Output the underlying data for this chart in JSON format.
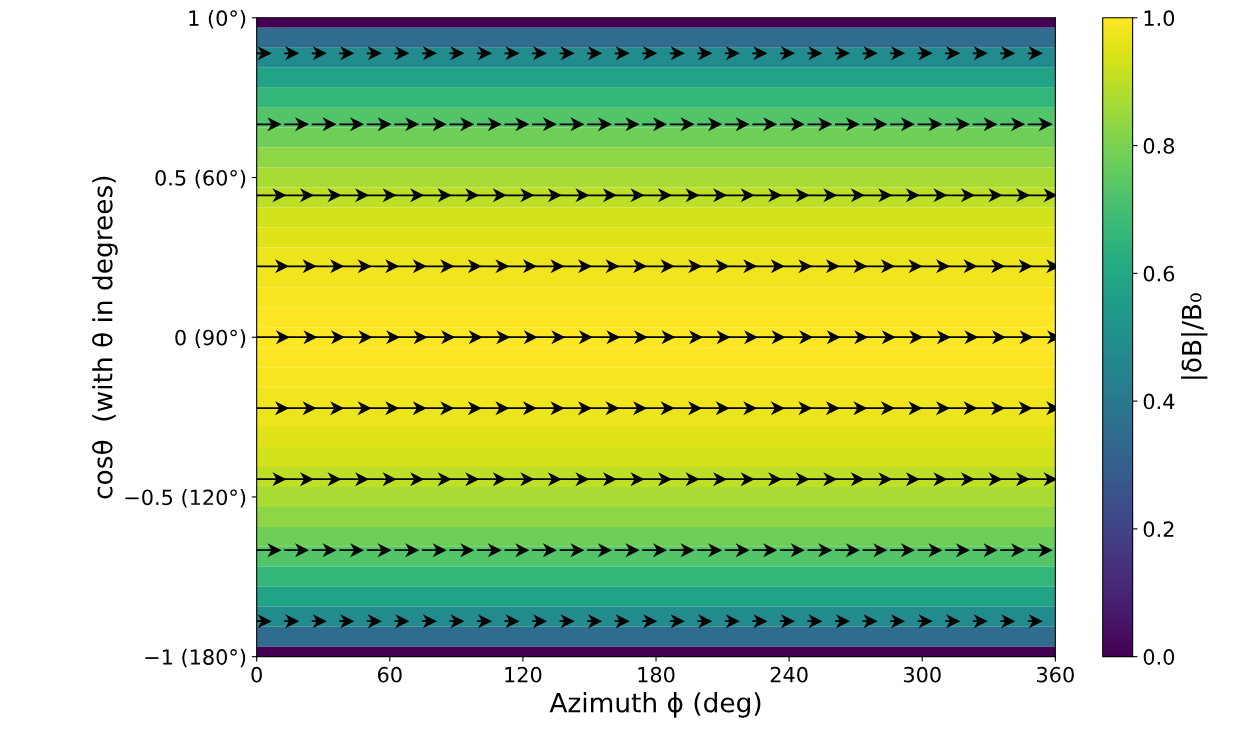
{
  "chart_data": {
    "type": "heatmap",
    "xlabel": "Azimuth ϕ (deg)",
    "ylabel": "cosθ  (with θ in degrees)",
    "clabel": "|δB|/B₀",
    "y_categories": [
      "1 (0°)",
      null,
      null,
      null,
      null,
      null,
      null,
      null,
      "0.5 (60°)",
      null,
      null,
      null,
      null,
      null,
      null,
      null,
      "0 (90°)",
      null,
      null,
      null,
      null,
      null,
      null,
      null,
      "−0.5 (120°)",
      null,
      null,
      null,
      null,
      null,
      null,
      null,
      "−1 (180°)"
    ],
    "cells": [
      [
        0.0
      ],
      [
        0.35
      ],
      [
        0.48
      ],
      [
        0.58
      ],
      [
        0.66
      ],
      [
        0.73
      ],
      [
        0.78
      ],
      [
        0.83
      ],
      [
        0.87
      ],
      [
        0.9
      ],
      [
        0.93
      ],
      [
        0.95
      ],
      [
        0.97
      ],
      [
        0.98
      ],
      [
        0.99
      ],
      [
        1.0
      ],
      [
        1.0
      ],
      [
        1.0
      ],
      [
        0.99
      ],
      [
        0.98
      ],
      [
        0.97
      ],
      [
        0.95
      ],
      [
        0.93
      ],
      [
        0.9
      ],
      [
        0.87
      ],
      [
        0.83
      ],
      [
        0.78
      ],
      [
        0.73
      ],
      [
        0.66
      ],
      [
        0.58
      ],
      [
        0.48
      ],
      [
        0.35
      ],
      [
        0.0
      ]
    ],
    "xlim": [
      0,
      360
    ],
    "xticks": [
      0,
      60,
      120,
      180,
      240,
      300,
      360
    ],
    "clim": [
      0,
      1
    ],
    "cticks": [
      {
        "value": 0,
        "label": "0.0"
      },
      {
        "value": 0.2,
        "label": "0.2"
      },
      {
        "value": 0.4,
        "label": "0.4"
      },
      {
        "value": 0.6,
        "label": "0.6"
      },
      {
        "value": 0.8,
        "label": "0.8"
      },
      {
        "value": 1,
        "label": "1.0"
      }
    ]
  }
}
